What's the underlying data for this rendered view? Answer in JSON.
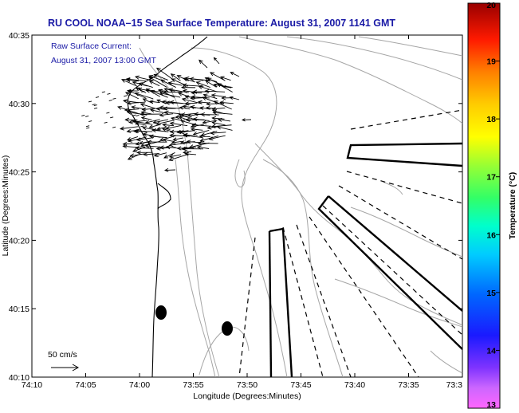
{
  "title": "RU COOL  NOAA–15  Sea Surface Temperature:  August 31, 2007 1141 GMT",
  "overlay_label_line1": "Raw Surface Current:",
  "overlay_label_line2": "August 31, 2007 13:00 GMT",
  "scale_label": "50 cm/s",
  "xlabel": "Longitude (Degrees:Minutes)",
  "ylabel": "Latitude (Degrees:Minutes)",
  "x_ticks": [
    "74:10",
    "74:05",
    "74:00",
    "73:55",
    "73:50",
    "73:45",
    "73:40",
    "73:35",
    "73:3"
  ],
  "y_ticks": [
    "40:35",
    "40:30",
    "40:25",
    "40:20",
    "40:15",
    "40:10"
  ],
  "colorbar": {
    "label": "Temperature (°C)",
    "ticks": [
      "20",
      "19",
      "18",
      "17",
      "16",
      "15",
      "14",
      "13"
    ],
    "range": [
      13,
      20
    ],
    "colors": [
      "#ff66ff",
      "#9966ff",
      "#1a1aff",
      "#0066ff",
      "#00ccff",
      "#00ffcc",
      "#33ff66",
      "#99ff33",
      "#ffff00",
      "#ffcc00",
      "#ff8000",
      "#ff3300",
      "#e60000",
      "#990000"
    ]
  },
  "map_colors": {
    "contour": "#a0a0a0",
    "coast": "#000000",
    "title": "#1a1aa6"
  }
}
